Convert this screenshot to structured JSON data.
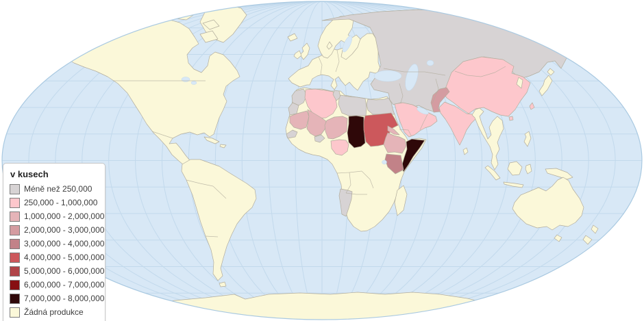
{
  "legend": {
    "title": "v kusech",
    "items": [
      {
        "label": "Méně než 250,000",
        "band": "g",
        "color": "#d7d3d4"
      },
      {
        "label": "250,000 - 1,000,000",
        "band": "p1",
        "color": "#fdc7cc"
      },
      {
        "label": "1,000,000 - 2,000,000",
        "band": "p2",
        "color": "#e5b4b8"
      },
      {
        "label": "2,000,000 - 3,000,000",
        "band": "p3",
        "color": "#d49ca1"
      },
      {
        "label": "3,000,000 - 4,000,000",
        "band": "p4",
        "color": "#c28288"
      },
      {
        "label": "4,000,000 - 5,000,000",
        "band": "r5",
        "color": "#cc585c"
      },
      {
        "label": "5,000,000 - 6,000,000",
        "band": "r6",
        "color": "#b04448"
      },
      {
        "label": "6,000,000 - 7,000,000",
        "band": "r7",
        "color": "#870f12"
      },
      {
        "label": "7,000,000 - 8,000,000",
        "band": "r8",
        "color": "#2f0809"
      },
      {
        "label": "Žádná produkce",
        "band": "y",
        "color": "#fbf8d9"
      }
    ]
  },
  "map": {
    "ocean_color": "#d8e8f6",
    "graticule_color": "#c2d9ec",
    "outline_color": "#a9c9e1",
    "border_color": "#b2ad9d",
    "palette": {
      "g": "#d7d3d4",
      "p1": "#fdc7cc",
      "p2": "#e5b4b8",
      "p3": "#d49ca1",
      "p4": "#c28288",
      "r5": "#cc585c",
      "r6": "#b04448",
      "r7": "#870f12",
      "r8": "#2f0809",
      "y": "#fbf8d9"
    }
  },
  "chart_data": {
    "type": "choropleth_map",
    "title": "v kusech",
    "legend_position": "bottom-left",
    "projection": "world-ellipse",
    "bands": [
      {
        "label": "Méně než 250,000",
        "color": "#d7d3d4"
      },
      {
        "label": "250,000 - 1,000,000",
        "color": "#fdc7cc"
      },
      {
        "label": "1,000,000 - 2,000,000",
        "color": "#e5b4b8"
      },
      {
        "label": "2,000,000 - 3,000,000",
        "color": "#d49ca1"
      },
      {
        "label": "3,000,000 - 4,000,000",
        "color": "#c28288"
      },
      {
        "label": "4,000,000 - 5,000,000",
        "color": "#cc585c"
      },
      {
        "label": "5,000,000 - 6,000,000",
        "color": "#b04448"
      },
      {
        "label": "6,000,000 - 7,000,000",
        "color": "#870f12"
      },
      {
        "label": "7,000,000 - 8,000,000",
        "color": "#2f0809"
      },
      {
        "label": "Žádná produkce",
        "color": "#fbf8d9"
      }
    ],
    "regions": {
      "chad": "7,000,000 - 8,000,000",
      "somalia": "7,000,000 - 8,000,000",
      "sudan": "4,000,000 - 5,000,000",
      "kenya": "3,000,000 - 4,000,000",
      "pakistan": "2,000,000 - 3,000,000",
      "mauritania": "1,000,000 - 2,000,000",
      "mali": "1,000,000 - 2,000,000",
      "niger": "1,000,000 - 2,000,000",
      "ethiopia": "1,000,000 - 2,000,000",
      "eritrea": "1,000,000 - 2,000,000",
      "algeria": "250,000 - 1,000,000",
      "nigeria": "250,000 - 1,000,000",
      "saudi-arabia": "250,000 - 1,000,000",
      "yemen": "250,000 - 1,000,000",
      "oman": "250,000 - 1,000,000",
      "india": "250,000 - 1,000,000",
      "china": "250,000 - 1,000,000",
      "mongolia": "250,000 - 1,000,000",
      "russia": "Méně než 250,000",
      "kazakhstan": "Méně než 250,000",
      "central-asia": "Méně než 250,000",
      "turkey": "Méně než 250,000",
      "middle-east-levant": "Méně než 250,000",
      "iran": "Méně než 250,000",
      "afghanistan": "Méně než 250,000",
      "morocco": "Méně než 250,000",
      "western-sahara": "Méně než 250,000",
      "tunisia": "Méně než 250,000",
      "libya": "Méně než 250,000",
      "egypt": "Méně než 250,000",
      "senegal": "Méně než 250,000",
      "burkina-faso": "Méně než 250,000",
      "namibia": "Méně než 250,000",
      "rest-of-world": "Žádná produkce"
    }
  }
}
